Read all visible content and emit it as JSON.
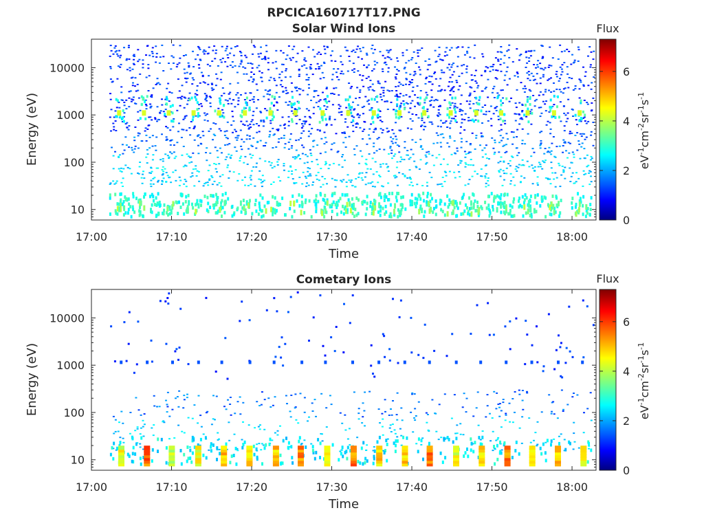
{
  "figure": {
    "title": "RPCICA160717T17.PNG"
  },
  "colormap": {
    "name": "jet",
    "stops": [
      "#000080",
      "#0000ff",
      "#00ffff",
      "#ffff00",
      "#ff0000",
      "#800000"
    ]
  },
  "chart_data": [
    {
      "type": "heatmap",
      "title": "Solar Wind Ions",
      "xlabel": "Time",
      "ylabel": "Energy (eV)",
      "x_ticks": [
        "17:00",
        "17:10",
        "17:20",
        "17:30",
        "17:40",
        "17:50",
        "18:00"
      ],
      "x_tick_minutes": [
        0,
        10,
        20,
        30,
        40,
        50,
        60
      ],
      "xlim_minutes": [
        0,
        63
      ],
      "y_scale": "log",
      "y_ticks": [
        "10",
        "100",
        "1000",
        "10000"
      ],
      "y_tick_values": [
        10,
        100,
        1000,
        10000
      ],
      "ylim": [
        6,
        40000
      ],
      "colorbar": {
        "label": "Flux",
        "units": "eV-1cm-2sr-1s-1",
        "range": [
          0,
          7.3
        ],
        "ticks": [
          "0",
          "2",
          "4",
          "6"
        ],
        "tick_values": [
          0,
          2,
          4,
          6
        ]
      },
      "peaks": {
        "description": "periodic enhancements at ~1100 eV and ~10 eV",
        "times_minutes": [
          3.4,
          6.5,
          9.6,
          12.7,
          15.9,
          19.1,
          22.3,
          25.4,
          28.8,
          32.0,
          35.2,
          38.4,
          41.5,
          44.8,
          48.0,
          51.1,
          54.4,
          57.7,
          60.9
        ],
        "energy_eV": 1100,
        "flux_at_peak": 4.3
      },
      "background": {
        "energy_range_eV": [
          30,
          30000
        ],
        "typical_flux": [
          1.0,
          2.8
        ]
      }
    },
    {
      "type": "heatmap",
      "title": "Cometary Ions",
      "xlabel": "Time",
      "ylabel": "Energy (eV)",
      "x_ticks": [
        "17:00",
        "17:10",
        "17:20",
        "17:30",
        "17:40",
        "17:50",
        "18:00"
      ],
      "x_tick_minutes": [
        0,
        10,
        20,
        30,
        40,
        50,
        60
      ],
      "xlim_minutes": [
        0,
        63
      ],
      "y_scale": "log",
      "y_ticks": [
        "10",
        "100",
        "1000",
        "10000"
      ],
      "y_tick_values": [
        10,
        100,
        1000,
        10000
      ],
      "ylim": [
        6,
        40000
      ],
      "colorbar": {
        "label": "Flux",
        "units": "eV-1cm-2sr-1s-1",
        "range": [
          0,
          7.3
        ],
        "ticks": [
          "0",
          "2",
          "4",
          "6"
        ],
        "tick_values": [
          0,
          2,
          4,
          6
        ]
      },
      "peaks": {
        "description": "intense low-energy bands near 8-18 eV",
        "times_minutes": [
          3.7,
          6.9,
          10.0,
          13.3,
          16.5,
          19.7,
          23.0,
          26.1,
          29.4,
          32.7,
          35.9,
          39.1,
          42.2,
          45.5,
          48.7,
          51.9,
          55.0,
          58.2,
          61.4
        ],
        "energy_eV": [
          8,
          18
        ],
        "flux_at_peak": [
          4.5,
          6.2
        ]
      },
      "secondary": {
        "energy_eV": 1150,
        "flux": 1.5
      },
      "background": {
        "energy_range_eV": [
          15,
          300
        ],
        "typical_flux": [
          2.0,
          2.8
        ]
      }
    }
  ]
}
